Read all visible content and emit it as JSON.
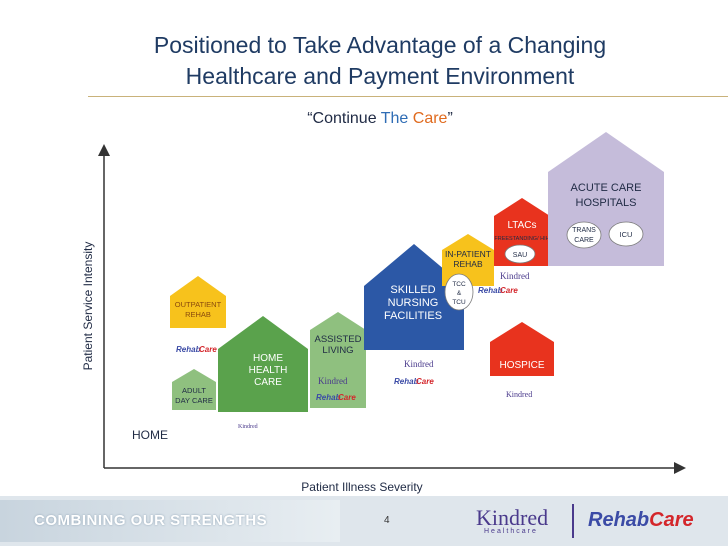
{
  "title_line1": "Positioned to Take Advantage of a Changing",
  "title_line2": "Healthcare and Payment Environment",
  "subtitle": {
    "part1": "“Continue ",
    "part2": "The",
    "part3": " Care",
    "part4": "”"
  },
  "axes": {
    "y_label": "Patient Service Intensity",
    "x_label": "Patient Illness Severity"
  },
  "nodes": {
    "home": "HOME",
    "adult_day_care": [
      "ADULT",
      "DAY CARE"
    ],
    "outpatient_rehab": [
      "OUTPATIENT",
      "REHAB"
    ],
    "home_health_care": [
      "HOME",
      "HEALTH",
      "CARE"
    ],
    "assisted_living": [
      "ASSISTED",
      "LIVING"
    ],
    "skilled_nursing": [
      "SKILLED",
      "NURSING",
      "FACILITIES"
    ],
    "tcc_tcu": [
      "TCC",
      "&",
      "TCU"
    ],
    "inpatient_rehab": [
      "IN-PATIENT",
      "REHAB"
    ],
    "ltacs": "LTACs",
    "ltacs_sub": "FREESTANDING/ HIH",
    "sau": "SAU",
    "hospice": "HOSPICE",
    "acute_care": [
      "ACUTE CARE",
      "HOSPITALS"
    ],
    "trans_care": [
      "TRANS",
      "CARE"
    ],
    "icu": "ICU"
  },
  "logo_text": {
    "kindred": "Kindred",
    "rehab": "Rehab",
    "care": "Care"
  },
  "footer": {
    "tagline": "COMBINING OUR STRENGTHS",
    "page_number": "4",
    "kindred": "Kindred",
    "kindred_sub": "Healthcare",
    "rehab": "Rehab",
    "care": "Care"
  },
  "colors": {
    "green": "#8fc07f",
    "dark_green": "#5aa24c",
    "yellow": "#f7c21c",
    "blue": "#2c58a6",
    "red": "#e8331e",
    "lavender": "#c5bcda",
    "title": "#1f3b63"
  }
}
